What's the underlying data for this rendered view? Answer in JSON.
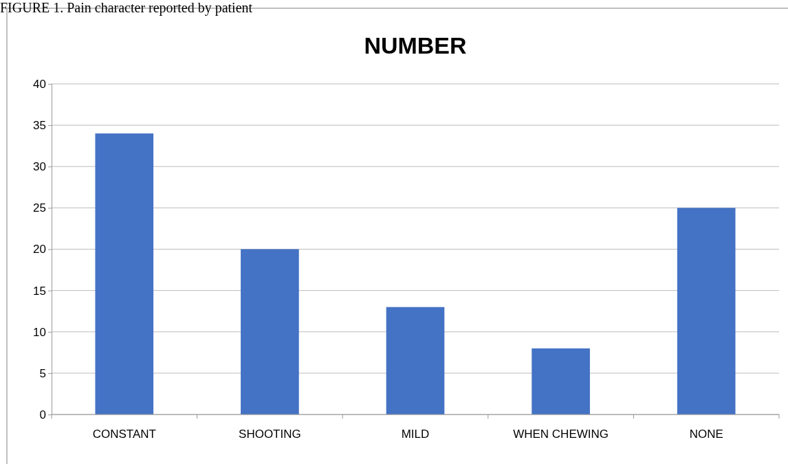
{
  "chart_data": {
    "type": "bar",
    "title": "NUMBER",
    "annotations": [
      "FIGURE 1. Pain character reported by patient"
    ],
    "categories": [
      "CONSTANT",
      "SHOOTING",
      "MILD",
      "WHEN CHEWING",
      "NONE"
    ],
    "values": [
      34,
      20,
      13,
      8,
      25
    ],
    "color": "#4472c4",
    "ylim": [
      0,
      40
    ],
    "yticks": [
      0,
      5,
      10,
      15,
      20,
      25,
      30,
      35,
      40
    ],
    "grid": "y"
  }
}
